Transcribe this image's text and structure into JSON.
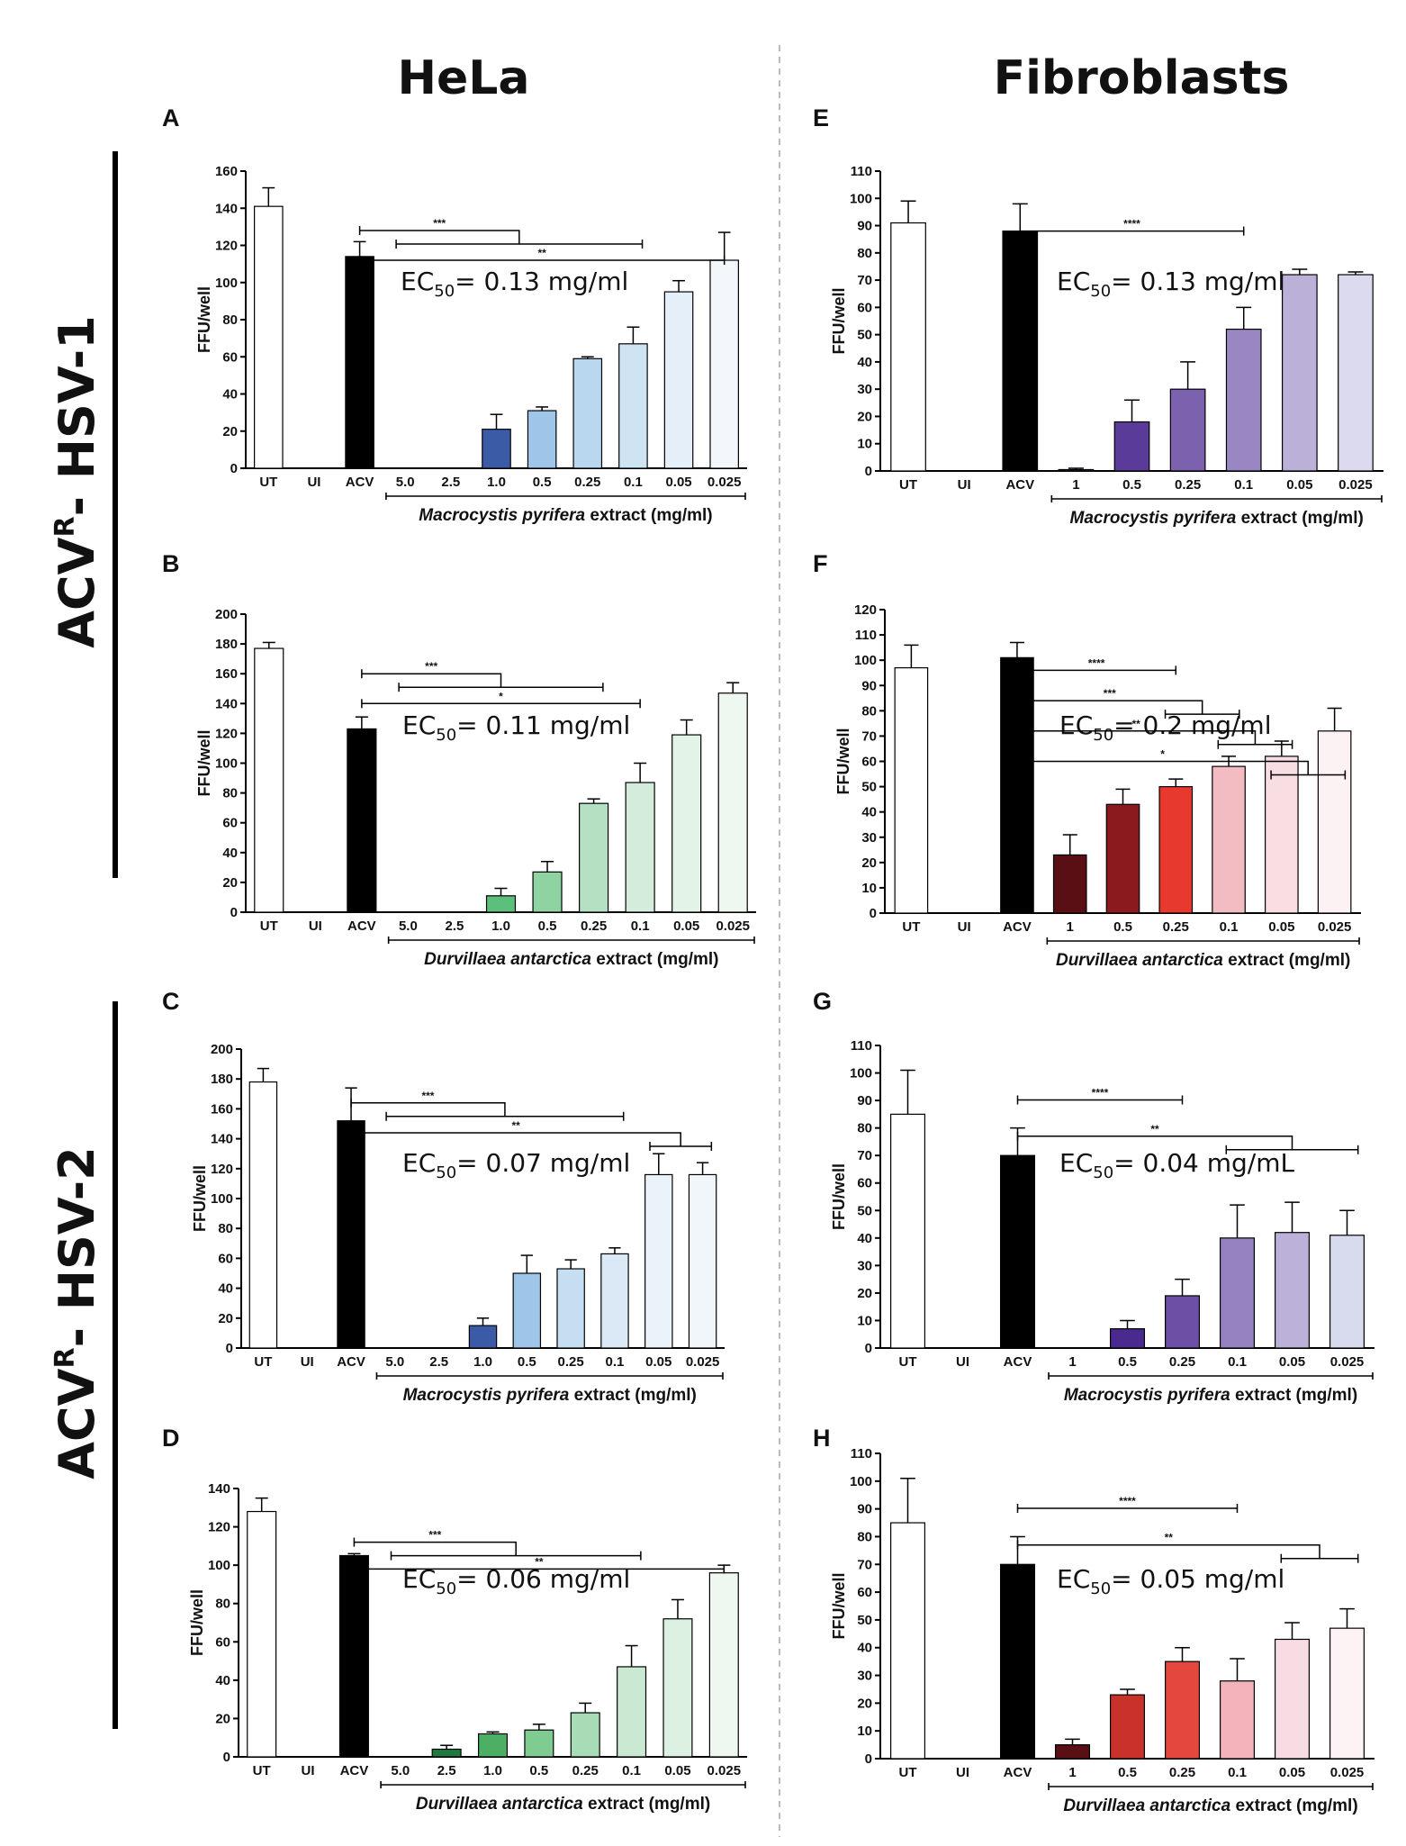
{
  "figure": {
    "columns": [
      "HeLa",
      "Fibroblasts"
    ],
    "rows": [
      {
        "main": "ACV",
        "sup": "R",
        "rest": "- HSV-1"
      },
      {
        "main": "ACV",
        "sup": "R",
        "rest": "- HSV-2"
      }
    ]
  },
  "chart_data": [
    {
      "panel": "A",
      "type": "bar",
      "ylabel": "FFU/well",
      "ylim": [
        0,
        160
      ],
      "yticks": [
        0,
        20,
        40,
        60,
        80,
        100,
        120,
        140,
        160
      ],
      "categories": [
        "UT",
        "UI",
        "ACV",
        "5.0",
        "2.5",
        "1.0",
        "0.5",
        "0.25",
        "0.1",
        "0.05",
        "0.025"
      ],
      "values": [
        141,
        0,
        114,
        0,
        0,
        21,
        31,
        59,
        67,
        95,
        112
      ],
      "errors": [
        10,
        0,
        8,
        0,
        0,
        8,
        2,
        1,
        9,
        6,
        15
      ],
      "colors": [
        "#ffffff",
        "#ffffff",
        "#000000",
        "#ffffff",
        "#ffffff",
        "#3b5ba7",
        "#9fc5e8",
        "#b9d8ef",
        "#cfe4f3",
        "#e4eff9",
        "#f3f7fc"
      ],
      "xlabel_italic": "Macrocystis pyrifera",
      "xlabel_rest": " extract (mg/ml)",
      "xlabel_from": 3,
      "ec50": {
        "pre": "EC",
        "sub": "50",
        "post": "= 0.13 mg/ml"
      },
      "significance": [
        {
          "label": "**",
          "type": "line",
          "from": 2,
          "to": 10,
          "level": 0.3
        },
        {
          "label": "***",
          "type": "bracket",
          "from": 2,
          "bracket": [
            3,
            8
          ],
          "level": 0.2
        }
      ]
    },
    {
      "panel": "B",
      "type": "bar",
      "ylabel": "FFU/well",
      "ylim": [
        0,
        200
      ],
      "yticks": [
        0,
        20,
        40,
        60,
        80,
        100,
        120,
        140,
        160,
        180,
        200
      ],
      "categories": [
        "UT",
        "UI",
        "ACV",
        "5.0",
        "2.5",
        "1.0",
        "0.5",
        "0.25",
        "0.1",
        "0.05",
        "0.025"
      ],
      "values": [
        177,
        0,
        123,
        0,
        0,
        11,
        27,
        73,
        87,
        119,
        147
      ],
      "errors": [
        4,
        0,
        8,
        0,
        0,
        5,
        7,
        3,
        13,
        10,
        7
      ],
      "colors": [
        "#ffffff",
        "#ffffff",
        "#000000",
        "#ffffff",
        "#ffffff",
        "#5cbf7c",
        "#8fd3a3",
        "#b5e0c2",
        "#d3ecdb",
        "#e3f3e8",
        "#eef8f1"
      ],
      "xlabel_italic": "Durvillaea antarctica",
      "xlabel_rest": " extract (mg/ml)",
      "xlabel_from": 3,
      "ec50": {
        "pre": "EC",
        "sub": "50",
        "post": "= 0.11 mg/ml"
      },
      "significance": [
        {
          "label": "*",
          "type": "line",
          "from": 2,
          "to": 8,
          "level": 0.3
        },
        {
          "label": "***",
          "type": "bracket",
          "from": 2,
          "bracket": [
            3,
            7
          ],
          "level": 0.2
        }
      ]
    },
    {
      "panel": "C",
      "type": "bar",
      "ylabel": "FFU/well",
      "ylim": [
        0,
        200
      ],
      "yticks": [
        0,
        20,
        40,
        60,
        80,
        100,
        120,
        140,
        160,
        180,
        200
      ],
      "categories": [
        "UT",
        "UI",
        "ACV",
        "5.0",
        "2.5",
        "1.0",
        "0.5",
        "0.25",
        "0.1",
        "0.05",
        "0.025"
      ],
      "values": [
        178,
        0,
        152,
        0,
        0,
        15,
        50,
        53,
        63,
        116,
        116
      ],
      "errors": [
        9,
        0,
        22,
        0,
        0,
        5,
        12,
        6,
        4,
        14,
        8
      ],
      "colors": [
        "#ffffff",
        "#ffffff",
        "#000000",
        "#ffffff",
        "#ffffff",
        "#3b5ba7",
        "#9fc5e8",
        "#c5def1",
        "#dbe9f6",
        "#eaf2fa",
        "#f1f6fb"
      ],
      "xlabel_italic": "Macrocystis pyrifera",
      "xlabel_rest": " extract (mg/ml)",
      "xlabel_from": 3,
      "ec50": {
        "pre": "EC",
        "sub": "50",
        "post": "= 0.07 mg/ml"
      },
      "significance": [
        {
          "label": "**",
          "type": "bracket",
          "from": 2,
          "bracket": [
            9,
            10
          ],
          "level": 0.28
        },
        {
          "label": "***",
          "type": "bracket",
          "from": 2,
          "bracket": [
            3,
            8
          ],
          "level": 0.18
        }
      ]
    },
    {
      "panel": "D",
      "type": "bar",
      "ylabel": "FFU/well",
      "ylim": [
        0,
        140
      ],
      "yticks": [
        0,
        20,
        40,
        60,
        80,
        100,
        120,
        140
      ],
      "categories": [
        "UT",
        "UI",
        "ACV",
        "5.0",
        "2.5",
        "1.0",
        "0.5",
        "0.25",
        "0.1",
        "0.05",
        "0.025"
      ],
      "values": [
        128,
        0,
        105,
        0,
        4,
        12,
        14,
        23,
        47,
        72,
        96
      ],
      "errors": [
        7,
        0,
        1,
        0,
        2,
        1,
        3,
        5,
        11,
        10,
        4
      ],
      "colors": [
        "#ffffff",
        "#ffffff",
        "#000000",
        "#ffffff",
        "#1e7a3e",
        "#4caf63",
        "#7fcc93",
        "#a8dcb6",
        "#c9e9d2",
        "#ddf1e3",
        "#eef8f1"
      ],
      "xlabel_italic": "Durvillaea antarctica",
      "xlabel_rest": " extract (mg/ml)",
      "xlabel_from": 3,
      "ec50": {
        "pre": "EC",
        "sub": "50",
        "post": "= 0.06 mg/ml"
      },
      "significance": [
        {
          "label": "**",
          "type": "line",
          "from": 2,
          "to": 10,
          "level": 0.3
        },
        {
          "label": "***",
          "type": "bracket",
          "from": 2,
          "bracket": [
            3,
            8
          ],
          "level": 0.2
        }
      ]
    },
    {
      "panel": "E",
      "type": "bar",
      "ylabel": "FFU/well",
      "ylim": [
        0,
        110
      ],
      "yticks": [
        0,
        10,
        20,
        30,
        40,
        50,
        60,
        70,
        80,
        90,
        100,
        110
      ],
      "categories": [
        "UT",
        "UI",
        "ACV",
        "1",
        "0.5",
        "0.25",
        "0.1",
        "0.05",
        "0.025"
      ],
      "values": [
        91,
        0,
        88,
        0.5,
        18,
        30,
        52,
        72,
        72
      ],
      "errors": [
        8,
        0,
        10,
        0.5,
        8,
        10,
        8,
        2,
        1
      ],
      "colors": [
        "#ffffff",
        "#ffffff",
        "#000000",
        "#3a1f7a",
        "#5b3b9a",
        "#7b61ae",
        "#9a86c2",
        "#bbb0d8",
        "#dcdaee"
      ],
      "xlabel_italic": "Macrocystis pyrifera",
      "xlabel_rest": " extract (mg/ml)",
      "xlabel_from": 3,
      "ec50": {
        "pre": "EC",
        "sub": "50",
        "post": "= 0.13 mg/ml"
      },
      "significance": [
        {
          "label": "****",
          "type": "line",
          "from": 2,
          "to": 6,
          "level": 0.2
        }
      ]
    },
    {
      "panel": "F",
      "type": "bar",
      "ylabel": "FFU/well",
      "ylim": [
        0,
        120
      ],
      "yticks": [
        0,
        10,
        20,
        30,
        40,
        50,
        60,
        70,
        80,
        90,
        100,
        110,
        120
      ],
      "categories": [
        "UT",
        "UI",
        "ACV",
        "1",
        "0.5",
        "0.25",
        "0.1",
        "0.05",
        "0.025"
      ],
      "values": [
        97,
        0,
        101,
        23,
        43,
        50,
        58,
        62,
        72
      ],
      "errors": [
        9,
        0,
        6,
        8,
        6,
        3,
        4,
        6,
        9
      ],
      "colors": [
        "#ffffff",
        "#ffffff",
        "#000000",
        "#5a0f14",
        "#8b1a1f",
        "#e8392f",
        "#f2bcc2",
        "#f8dde3",
        "#fcf1f3"
      ],
      "xlabel_italic": "Durvillaea antarctica",
      "xlabel_rest": " extract (mg/ml)",
      "xlabel_from": 3,
      "ec50": {
        "pre": "EC",
        "sub": "50",
        "post": "= 0.2 mg/ml"
      },
      "significance": [
        {
          "label": "*",
          "type": "bracket",
          "from": 2,
          "bracket": [
            7,
            8
          ],
          "level": 0.5
        },
        {
          "label": "**",
          "type": "bracket",
          "from": 2,
          "bracket": [
            6,
            7
          ],
          "level": 0.4
        },
        {
          "label": "***",
          "type": "bracket",
          "from": 2,
          "bracket": [
            5,
            6
          ],
          "level": 0.3
        },
        {
          "label": "****",
          "type": "line",
          "from": 2,
          "to": 5,
          "level": 0.2
        }
      ]
    },
    {
      "panel": "G",
      "type": "bar",
      "ylabel": "FFU/well",
      "ylim": [
        0,
        110
      ],
      "yticks": [
        0,
        10,
        20,
        30,
        40,
        50,
        60,
        70,
        80,
        90,
        100,
        110
      ],
      "categories": [
        "UT",
        "UI",
        "ACV",
        "1",
        "0.5",
        "0.25",
        "0.1",
        "0.05",
        "0.025"
      ],
      "values": [
        85,
        0,
        70,
        0,
        7,
        19,
        40,
        42,
        41
      ],
      "errors": [
        16,
        0,
        10,
        0,
        3,
        6,
        12,
        11,
        9
      ],
      "colors": [
        "#ffffff",
        "#ffffff",
        "#000000",
        "#ffffff",
        "#4a2a8e",
        "#6e4fa6",
        "#9682c0",
        "#bcb1d8",
        "#d8daee"
      ],
      "xlabel_italic": "Macrocystis pyrifera",
      "xlabel_rest": " extract (mg/ml)",
      "xlabel_from": 3,
      "ec50": {
        "pre": "EC",
        "sub": "50",
        "post": "= 0.04 mg/mL"
      },
      "significance": [
        {
          "label": "**",
          "type": "bracket",
          "from": 2,
          "bracket": [
            6,
            8
          ],
          "level": 0.3
        },
        {
          "label": "****",
          "type": "line",
          "from": 2,
          "to": 5,
          "level": 0.18
        }
      ]
    },
    {
      "panel": "H",
      "type": "bar",
      "ylabel": "FFU/well",
      "ylim": [
        0,
        110
      ],
      "yticks": [
        0,
        10,
        20,
        30,
        40,
        50,
        60,
        70,
        80,
        90,
        100,
        110
      ],
      "categories": [
        "UT",
        "UI",
        "ACV",
        "1",
        "0.5",
        "0.25",
        "0.1",
        "0.05",
        "0.025"
      ],
      "values": [
        85,
        0,
        70,
        5,
        23,
        35,
        28,
        43,
        47
      ],
      "errors": [
        16,
        0,
        10,
        2,
        2,
        5,
        8,
        6,
        7
      ],
      "colors": [
        "#ffffff",
        "#ffffff",
        "#000000",
        "#5a0f14",
        "#c8322a",
        "#e3473d",
        "#f2b3bb",
        "#f8dce3",
        "#fdf3f5"
      ],
      "xlabel_italic": "Durvillaea antarctica",
      "xlabel_rest": " extract (mg/ml)",
      "xlabel_from": 3,
      "ec50": {
        "pre": "EC",
        "sub": "50",
        "post": "= 0.05 mg/ml"
      },
      "significance": [
        {
          "label": "**",
          "type": "bracket",
          "from": 2,
          "bracket": [
            7,
            8
          ],
          "level": 0.3
        },
        {
          "label": "****",
          "type": "line",
          "from": 2,
          "to": 6,
          "level": 0.18
        }
      ]
    }
  ]
}
